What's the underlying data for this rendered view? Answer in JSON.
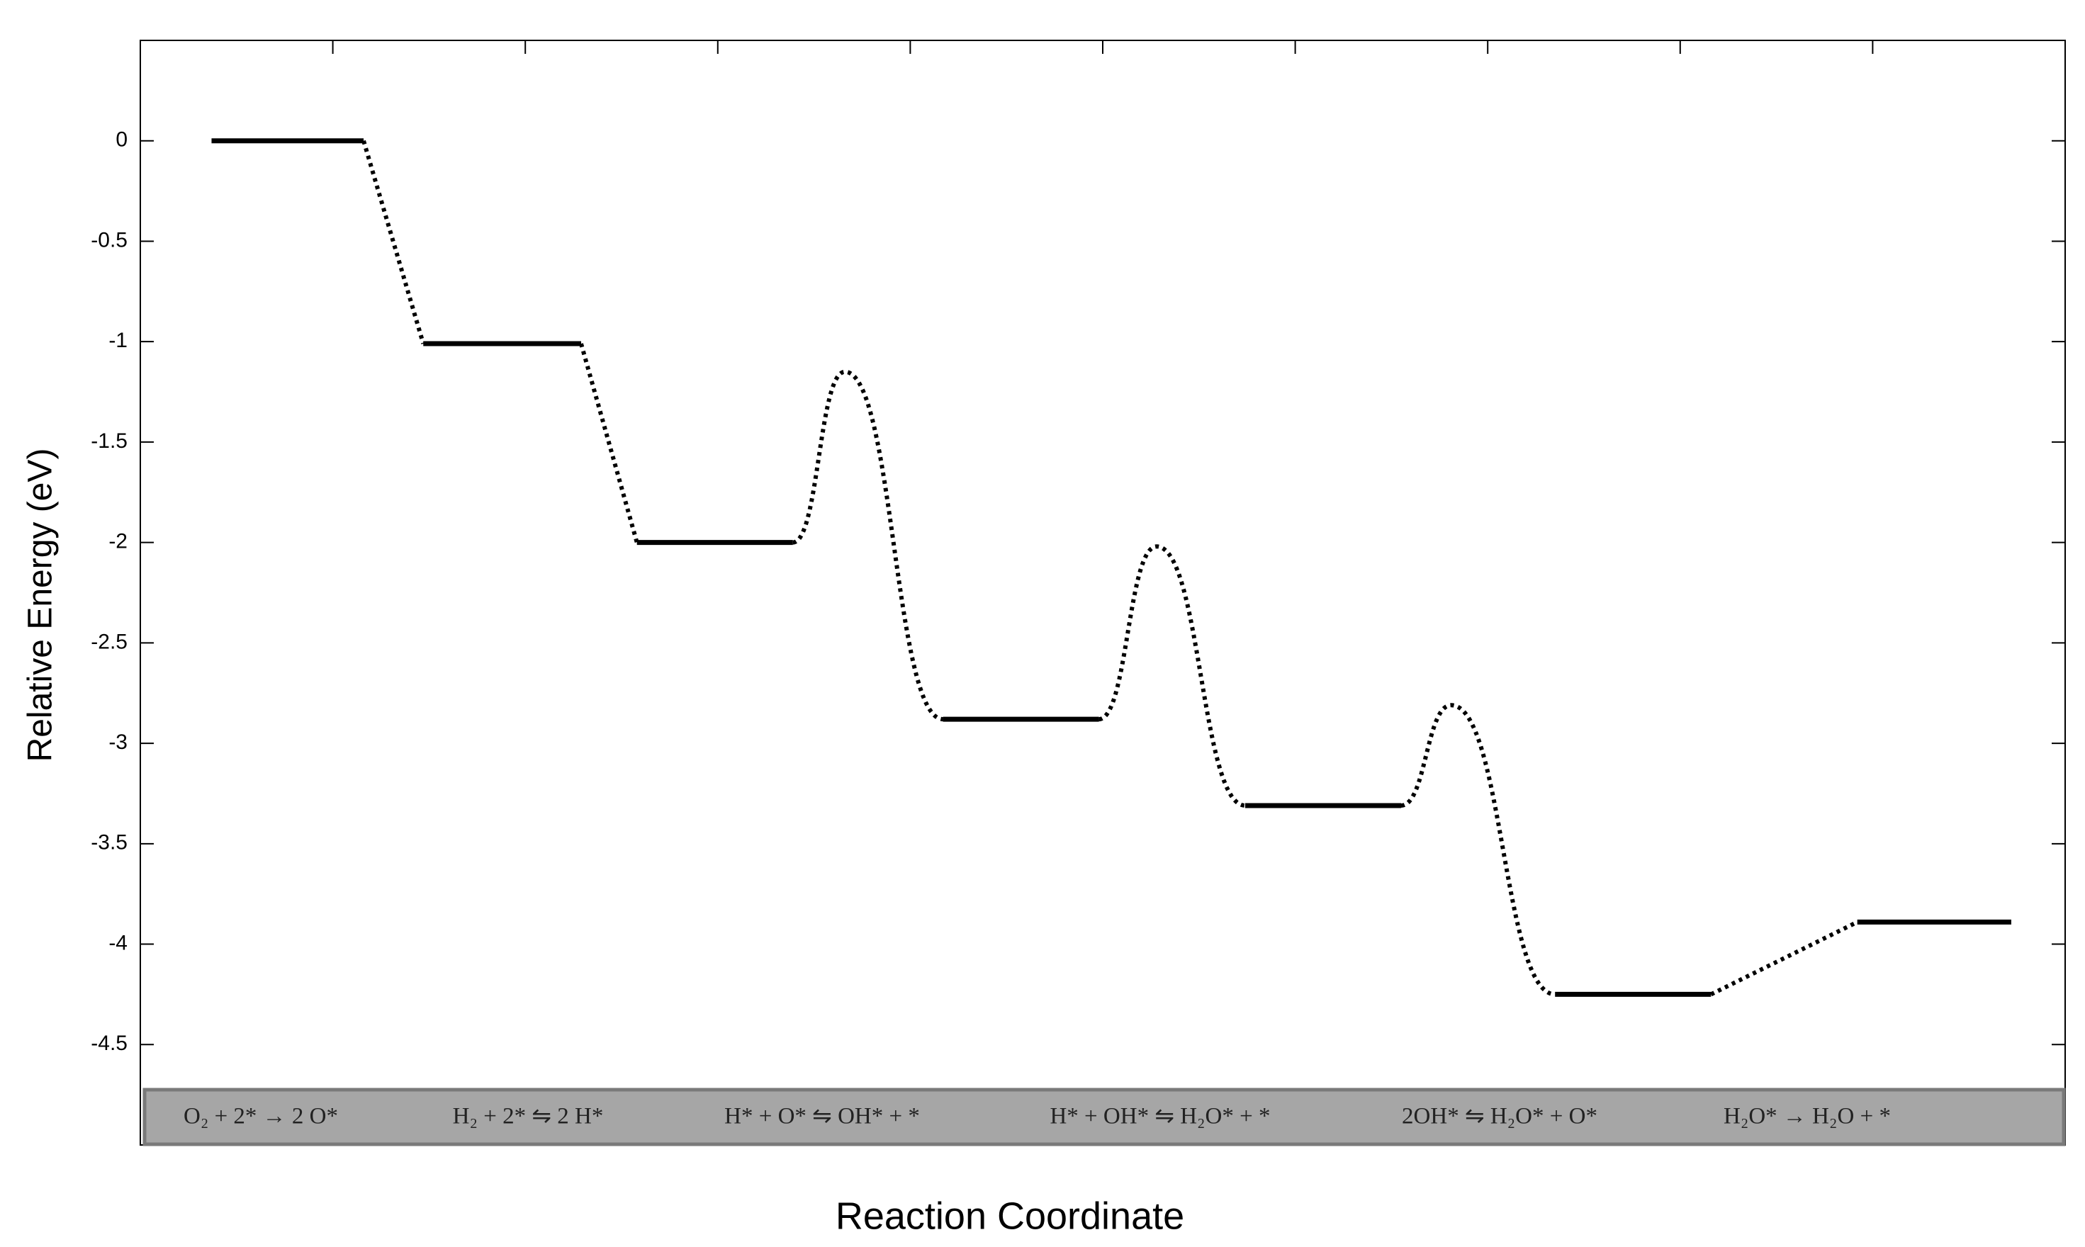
{
  "chart_data": {
    "type": "energy-diagram",
    "ylabel": "Relative Energy (eV)",
    "xlabel": "Reaction Coordinate",
    "ylim": [
      -5,
      0.5
    ],
    "yticks": [
      0,
      -0.5,
      -1,
      -1.5,
      -2,
      -2.5,
      -3,
      -3.5,
      -4,
      -4.5
    ],
    "xlim": [
      0,
      10
    ],
    "xticks": [
      1,
      2,
      3,
      4,
      5,
      6,
      7,
      8,
      9
    ],
    "levels": {
      "x_start": [
        0.37,
        1.47,
        2.58,
        4.17,
        5.74,
        7.35,
        8.92
      ],
      "x_end": [
        1.16,
        2.29,
        3.39,
        4.98,
        6.55,
        8.16,
        9.72
      ],
      "values": [
        0,
        -1.01,
        -2,
        -2.88,
        -3.31,
        -4.25,
        -3.89
      ]
    },
    "transition_states": {
      "x": [
        null,
        null,
        3.66,
        5.28,
        6.81,
        null
      ],
      "values": [
        null,
        null,
        -1.15,
        -2.02,
        -2.81,
        null
      ]
    },
    "steps": [
      "O₂ + 2* → 2 O*",
      "H₂ + 2* ⇋ 2 H*",
      "H* + O* ⇋ OH* + *",
      "H* + OH* ⇋ H₂O* + *",
      "2OH* ⇋ H₂O* + O*",
      "H₂O* → H₂O + *"
    ]
  }
}
